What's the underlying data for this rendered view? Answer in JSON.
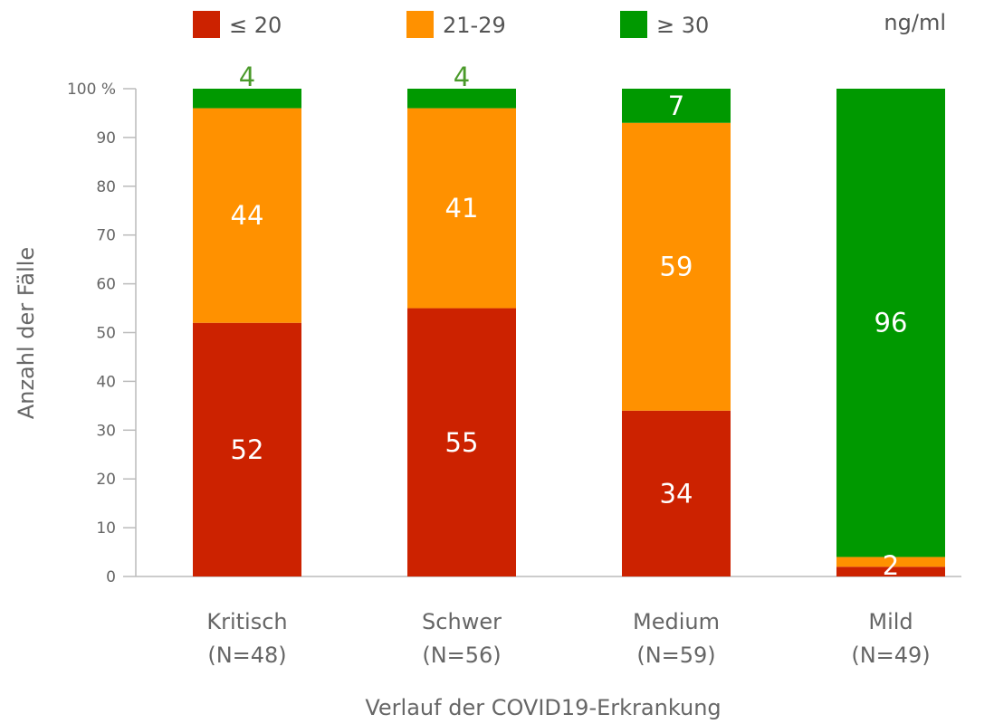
{
  "chart_data": {
    "type": "bar",
    "stacked": true,
    "xlabel": "Verlauf der COVID19-Erkrankung",
    "ylabel": "Anzahl der Fälle",
    "unit_label": "ng/ml",
    "ylim": [
      0,
      100
    ],
    "yticks": [
      "0",
      "10",
      "20",
      "30",
      "40",
      "50",
      "60",
      "70",
      "80",
      "90",
      "100 %"
    ],
    "legend_position": "top",
    "categories": [
      {
        "name": "Kritisch",
        "n": "(N=48)"
      },
      {
        "name": "Schwer",
        "n": "(N=56)"
      },
      {
        "name": "Medium",
        "n": "(N=59)"
      },
      {
        "name": "Mild",
        "n": "(N=49)"
      }
    ],
    "series": [
      {
        "name": "≤ 20",
        "color": "#cc2200",
        "values": [
          52,
          55,
          34,
          2
        ],
        "labels": [
          "52",
          "55",
          "34",
          "2"
        ]
      },
      {
        "name": "21-29",
        "color": "#ff9100",
        "values": [
          44,
          41,
          59,
          2
        ],
        "labels": [
          "44",
          "41",
          "59",
          ""
        ]
      },
      {
        "name": "≥ 30",
        "color": "#009900",
        "values": [
          4,
          4,
          7,
          96
        ],
        "labels": [
          "4",
          "4",
          "7",
          "96"
        ]
      }
    ]
  }
}
